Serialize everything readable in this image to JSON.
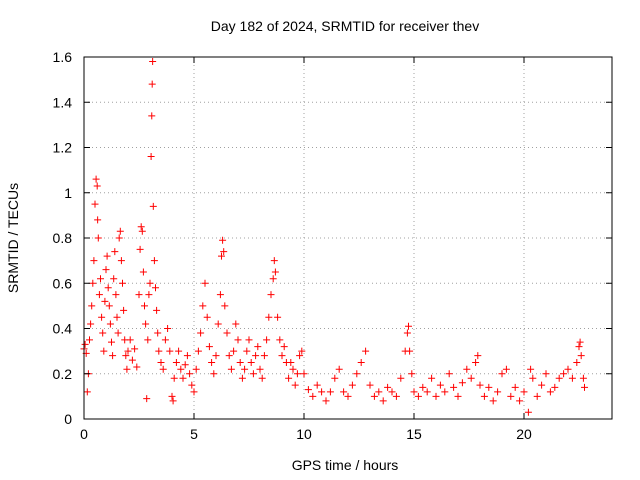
{
  "chart_data": {
    "type": "scatter",
    "title": "Day 182 of 2024, SRMTID for receiver thev",
    "xlabel": "GPS time / hours",
    "ylabel": "SRMTID / TECUs",
    "xlim": [
      0,
      24
    ],
    "ylim": [
      0,
      1.6
    ],
    "x_ticks": [
      0,
      5,
      10,
      15,
      20
    ],
    "x_tick_labels": [
      "0",
      "5",
      "10",
      "15",
      "20"
    ],
    "y_ticks": [
      0,
      0.2,
      0.4,
      0.6,
      0.8,
      1,
      1.2,
      1.4,
      1.6
    ],
    "y_tick_labels": [
      "0",
      "0.2",
      "0.4",
      "0.6",
      "0.8",
      "1",
      "1.2",
      "1.4",
      "1.6"
    ],
    "grid": true,
    "marker": "+",
    "color": "#ff0000",
    "series": [
      {
        "name": "SRMTID",
        "points": [
          [
            0.0,
            0.31
          ],
          [
            0.05,
            0.33
          ],
          [
            0.1,
            0.29
          ],
          [
            0.15,
            0.12
          ],
          [
            0.2,
            0.2
          ],
          [
            0.25,
            0.35
          ],
          [
            0.3,
            0.42
          ],
          [
            0.35,
            0.5
          ],
          [
            0.4,
            0.6
          ],
          [
            0.45,
            0.7
          ],
          [
            0.5,
            0.95
          ],
          [
            0.55,
            1.06
          ],
          [
            0.6,
            1.03
          ],
          [
            0.62,
            0.88
          ],
          [
            0.65,
            0.8
          ],
          [
            0.7,
            0.55
          ],
          [
            0.75,
            0.62
          ],
          [
            0.8,
            0.45
          ],
          [
            0.85,
            0.38
          ],
          [
            0.9,
            0.3
          ],
          [
            0.95,
            0.52
          ],
          [
            1.0,
            0.66
          ],
          [
            1.05,
            0.72
          ],
          [
            1.1,
            0.58
          ],
          [
            1.15,
            0.5
          ],
          [
            1.2,
            0.42
          ],
          [
            1.25,
            0.34
          ],
          [
            1.3,
            0.28
          ],
          [
            1.35,
            0.62
          ],
          [
            1.4,
            0.74
          ],
          [
            1.45,
            0.55
          ],
          [
            1.5,
            0.45
          ],
          [
            1.55,
            0.38
          ],
          [
            1.6,
            0.8
          ],
          [
            1.65,
            0.83
          ],
          [
            1.7,
            0.7
          ],
          [
            1.75,
            0.6
          ],
          [
            1.8,
            0.48
          ],
          [
            1.85,
            0.35
          ],
          [
            1.9,
            0.28
          ],
          [
            1.95,
            0.22
          ],
          [
            2.0,
            0.3
          ],
          [
            2.1,
            0.35
          ],
          [
            2.2,
            0.26
          ],
          [
            2.3,
            0.31
          ],
          [
            2.4,
            0.23
          ],
          [
            2.5,
            0.55
          ],
          [
            2.55,
            0.75
          ],
          [
            2.6,
            0.85
          ],
          [
            2.65,
            0.83
          ],
          [
            2.7,
            0.65
          ],
          [
            2.75,
            0.5
          ],
          [
            2.8,
            0.42
          ],
          [
            2.85,
            0.09
          ],
          [
            2.9,
            0.35
          ],
          [
            2.95,
            0.55
          ],
          [
            3.0,
            0.6
          ],
          [
            3.05,
            1.16
          ],
          [
            3.08,
            1.34
          ],
          [
            3.1,
            1.48
          ],
          [
            3.12,
            1.58
          ],
          [
            3.15,
            0.94
          ],
          [
            3.2,
            0.7
          ],
          [
            3.25,
            0.58
          ],
          [
            3.3,
            0.48
          ],
          [
            3.35,
            0.38
          ],
          [
            3.4,
            0.3
          ],
          [
            3.5,
            0.25
          ],
          [
            3.6,
            0.22
          ],
          [
            3.7,
            0.35
          ],
          [
            3.8,
            0.4
          ],
          [
            3.9,
            0.3
          ],
          [
            4.0,
            0.1
          ],
          [
            4.05,
            0.08
          ],
          [
            4.1,
            0.18
          ],
          [
            4.2,
            0.25
          ],
          [
            4.3,
            0.3
          ],
          [
            4.4,
            0.22
          ],
          [
            4.5,
            0.18
          ],
          [
            4.6,
            0.24
          ],
          [
            4.7,
            0.28
          ],
          [
            4.8,
            0.2
          ],
          [
            4.9,
            0.15
          ],
          [
            5.0,
            0.12
          ],
          [
            5.1,
            0.22
          ],
          [
            5.2,
            0.3
          ],
          [
            5.3,
            0.38
          ],
          [
            5.4,
            0.5
          ],
          [
            5.5,
            0.6
          ],
          [
            5.6,
            0.45
          ],
          [
            5.7,
            0.32
          ],
          [
            5.8,
            0.25
          ],
          [
            5.9,
            0.2
          ],
          [
            6.0,
            0.28
          ],
          [
            6.1,
            0.42
          ],
          [
            6.2,
            0.55
          ],
          [
            6.25,
            0.72
          ],
          [
            6.3,
            0.79
          ],
          [
            6.35,
            0.74
          ],
          [
            6.4,
            0.5
          ],
          [
            6.5,
            0.38
          ],
          [
            6.6,
            0.28
          ],
          [
            6.7,
            0.22
          ],
          [
            6.8,
            0.3
          ],
          [
            6.9,
            0.42
          ],
          [
            7.0,
            0.35
          ],
          [
            7.1,
            0.25
          ],
          [
            7.2,
            0.18
          ],
          [
            7.3,
            0.22
          ],
          [
            7.4,
            0.3
          ],
          [
            7.5,
            0.35
          ],
          [
            7.6,
            0.25
          ],
          [
            7.7,
            0.2
          ],
          [
            7.8,
            0.28
          ],
          [
            7.9,
            0.32
          ],
          [
            8.0,
            0.22
          ],
          [
            8.1,
            0.18
          ],
          [
            8.2,
            0.28
          ],
          [
            8.3,
            0.35
          ],
          [
            8.4,
            0.45
          ],
          [
            8.5,
            0.55
          ],
          [
            8.6,
            0.62
          ],
          [
            8.65,
            0.7
          ],
          [
            8.7,
            0.65
          ],
          [
            8.8,
            0.45
          ],
          [
            8.9,
            0.35
          ],
          [
            9.0,
            0.28
          ],
          [
            9.1,
            0.32
          ],
          [
            9.2,
            0.25
          ],
          [
            9.3,
            0.18
          ],
          [
            9.4,
            0.25
          ],
          [
            9.5,
            0.22
          ],
          [
            9.6,
            0.15
          ],
          [
            9.7,
            0.2
          ],
          [
            9.8,
            0.28
          ],
          [
            9.9,
            0.3
          ],
          [
            10.0,
            0.2
          ],
          [
            10.2,
            0.13
          ],
          [
            10.4,
            0.1
          ],
          [
            10.6,
            0.15
          ],
          [
            10.8,
            0.12
          ],
          [
            11.0,
            0.08
          ],
          [
            11.2,
            0.12
          ],
          [
            11.4,
            0.18
          ],
          [
            11.6,
            0.22
          ],
          [
            11.8,
            0.12
          ],
          [
            12.0,
            0.1
          ],
          [
            12.2,
            0.15
          ],
          [
            12.4,
            0.2
          ],
          [
            12.6,
            0.25
          ],
          [
            12.8,
            0.3
          ],
          [
            13.0,
            0.15
          ],
          [
            13.2,
            0.1
          ],
          [
            13.4,
            0.12
          ],
          [
            13.6,
            0.08
          ],
          [
            13.8,
            0.14
          ],
          [
            14.0,
            0.12
          ],
          [
            14.2,
            0.1
          ],
          [
            14.4,
            0.18
          ],
          [
            14.6,
            0.3
          ],
          [
            14.7,
            0.38
          ],
          [
            14.75,
            0.41
          ],
          [
            14.8,
            0.3
          ],
          [
            14.9,
            0.2
          ],
          [
            15.0,
            0.12
          ],
          [
            15.2,
            0.1
          ],
          [
            15.4,
            0.14
          ],
          [
            15.6,
            0.12
          ],
          [
            15.8,
            0.18
          ],
          [
            16.0,
            0.1
          ],
          [
            16.2,
            0.15
          ],
          [
            16.4,
            0.12
          ],
          [
            16.6,
            0.2
          ],
          [
            16.8,
            0.14
          ],
          [
            17.0,
            0.1
          ],
          [
            17.2,
            0.16
          ],
          [
            17.4,
            0.22
          ],
          [
            17.6,
            0.18
          ],
          [
            17.8,
            0.25
          ],
          [
            17.9,
            0.28
          ],
          [
            18.0,
            0.15
          ],
          [
            18.2,
            0.1
          ],
          [
            18.4,
            0.14
          ],
          [
            18.6,
            0.08
          ],
          [
            18.8,
            0.12
          ],
          [
            19.0,
            0.2
          ],
          [
            19.2,
            0.22
          ],
          [
            19.4,
            0.1
          ],
          [
            19.6,
            0.14
          ],
          [
            19.8,
            0.08
          ],
          [
            20.0,
            0.12
          ],
          [
            20.2,
            0.03
          ],
          [
            20.3,
            0.22
          ],
          [
            20.4,
            0.18
          ],
          [
            20.6,
            0.1
          ],
          [
            20.8,
            0.15
          ],
          [
            21.0,
            0.2
          ],
          [
            21.2,
            0.12
          ],
          [
            21.4,
            0.14
          ],
          [
            21.6,
            0.18
          ],
          [
            21.8,
            0.2
          ],
          [
            22.0,
            0.22
          ],
          [
            22.2,
            0.18
          ],
          [
            22.4,
            0.25
          ],
          [
            22.5,
            0.32
          ],
          [
            22.55,
            0.34
          ],
          [
            22.6,
            0.28
          ],
          [
            22.7,
            0.18
          ],
          [
            22.75,
            0.14
          ]
        ]
      }
    ]
  }
}
